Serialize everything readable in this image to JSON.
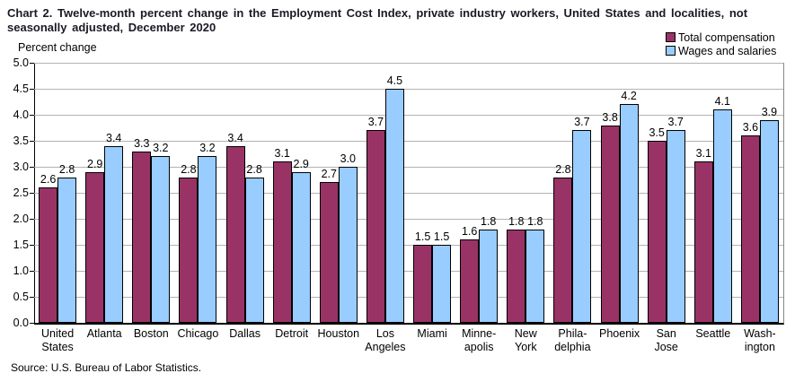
{
  "title": {
    "lines": [
      "Chart 2. Twelve-month percent change in the Employment Cost Index, private industry workers, United States and localities, not",
      "seasonally adjusted, December 2020"
    ]
  },
  "source": "Source: U.S. Bureau of Labor Statistics.",
  "colors": {
    "total_compensation": "#993366",
    "wages_and_salaries": "#99CCFF",
    "gridline": "#b3b3b3",
    "bar_border": "#000000"
  },
  "chart_data": {
    "type": "bar",
    "title": "Chart 2. Twelve-month percent change in the Employment Cost Index, private industry workers, United States and localities, not seasonally adjusted, December 2020",
    "ylabel": "Percent change",
    "xlabel": "",
    "ylim": [
      0,
      5
    ],
    "ytick_step": 0.5,
    "yticks": [
      "0.0",
      "0.5",
      "1.0",
      "1.5",
      "2.0",
      "2.5",
      "3.0",
      "3.5",
      "4.0",
      "4.5",
      "5.0"
    ],
    "grid": true,
    "legend_position": "top-right",
    "categories": [
      "United States",
      "Atlanta",
      "Boston",
      "Chicago",
      "Dallas",
      "Detroit",
      "Houston",
      "Los Angeles",
      "Miami",
      "Minneapolis",
      "New York",
      "Philadelphia",
      "Phoenix",
      "San Jose",
      "Seattle",
      "Washington"
    ],
    "category_lines": [
      [
        "United",
        "States"
      ],
      [
        "Atlanta"
      ],
      [
        "Boston"
      ],
      [
        "Chicago"
      ],
      [
        "Dallas"
      ],
      [
        "Detroit"
      ],
      [
        "Houston"
      ],
      [
        "Los",
        "Angeles"
      ],
      [
        "Miami"
      ],
      [
        "Minne-",
        "apolis"
      ],
      [
        "New",
        "York"
      ],
      [
        "Phila-",
        "delphia"
      ],
      [
        "Phoenix"
      ],
      [
        "San",
        "Jose"
      ],
      [
        "Seattle"
      ],
      [
        "Wash-",
        "ington"
      ]
    ],
    "series": [
      {
        "name": "Total compensation",
        "color": "#993366",
        "values": [
          2.6,
          2.9,
          3.3,
          2.8,
          3.4,
          3.1,
          2.7,
          3.7,
          1.5,
          1.6,
          1.8,
          2.8,
          3.8,
          3.5,
          3.1,
          3.6
        ]
      },
      {
        "name": "Wages and salaries",
        "color": "#99CCFF",
        "values": [
          2.8,
          3.4,
          3.2,
          3.2,
          2.8,
          2.9,
          3.0,
          4.5,
          1.5,
          1.8,
          1.8,
          3.7,
          4.2,
          3.7,
          4.1,
          3.9
        ]
      }
    ]
  }
}
